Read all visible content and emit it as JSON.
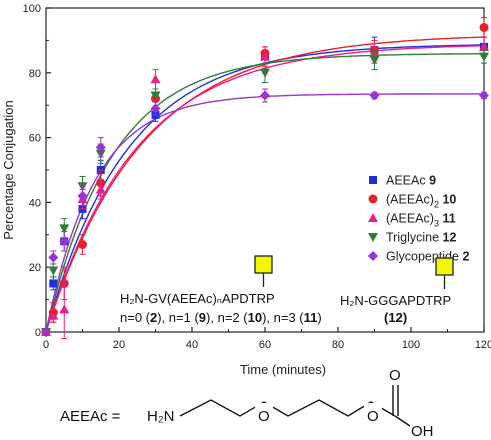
{
  "chart_data": {
    "type": "scatter",
    "xlabel": "Time (minutes)",
    "ylabel": "Percentage Conjugation",
    "xlim": [
      0,
      120
    ],
    "ylim": [
      0,
      100
    ],
    "xticks": [
      0,
      20,
      40,
      60,
      80,
      100,
      120
    ],
    "yticks": [
      0,
      20,
      40,
      60,
      80,
      100
    ],
    "grid": false,
    "legend_position": "middle-right",
    "series": [
      {
        "name": "AEEAc",
        "bold": "9",
        "marker": "square",
        "color": "#1f2fe0",
        "points": [
          [
            0,
            0
          ],
          [
            2,
            15
          ],
          [
            5,
            28
          ],
          [
            10,
            38
          ],
          [
            15,
            50
          ],
          [
            30,
            67
          ],
          [
            60,
            85
          ],
          [
            90,
            87
          ],
          [
            120,
            88
          ]
        ],
        "errors": [
          0,
          2,
          3,
          3,
          3,
          2,
          2,
          4,
          3
        ],
        "fit": {
          "max": 89,
          "k": 0.045
        }
      },
      {
        "name": "(AEEAc)",
        "sub": "2",
        "bold": "10",
        "marker": "circle",
        "color": "#e8202a",
        "points": [
          [
            0,
            0
          ],
          [
            2,
            6
          ],
          [
            5,
            15
          ],
          [
            10,
            27
          ],
          [
            15,
            46
          ],
          [
            30,
            72
          ],
          [
            60,
            86
          ],
          [
            90,
            87
          ],
          [
            120,
            94
          ]
        ],
        "errors": [
          0,
          3,
          5,
          3,
          4,
          3,
          2,
          3,
          3
        ],
        "fit": {
          "max": 92,
          "k": 0.038
        }
      },
      {
        "name": "(AEEAc)",
        "sub": "3",
        "bold": "11",
        "marker": "triangle-up",
        "color": "#ee1c8c",
        "points": [
          [
            0,
            0
          ],
          [
            2,
            5
          ],
          [
            5,
            7
          ],
          [
            10,
            41
          ],
          [
            15,
            44
          ],
          [
            30,
            78
          ],
          [
            60,
            85
          ],
          [
            90,
            86
          ],
          [
            120,
            88
          ]
        ],
        "errors": [
          0,
          2,
          9,
          3,
          3,
          3,
          3,
          3,
          3
        ],
        "fit": {
          "max": 89,
          "k": 0.041
        }
      },
      {
        "name": "Triglycine",
        "bold": "12",
        "marker": "triangle-down",
        "color": "#2e7d32",
        "points": [
          [
            0,
            0
          ],
          [
            2,
            19
          ],
          [
            5,
            32
          ],
          [
            10,
            45
          ],
          [
            15,
            55
          ],
          [
            30,
            73
          ],
          [
            60,
            80
          ],
          [
            90,
            84
          ],
          [
            120,
            85
          ]
        ],
        "errors": [
          0,
          2,
          3,
          3,
          3,
          2,
          3,
          3,
          2
        ],
        "fit": {
          "max": 86,
          "k": 0.055
        }
      },
      {
        "name": "Glycopeptide",
        "bold": "2",
        "marker": "diamond",
        "color": "#9b32d6",
        "points": [
          [
            0,
            0
          ],
          [
            2,
            23
          ],
          [
            5,
            28
          ],
          [
            10,
            42
          ],
          [
            15,
            57
          ],
          [
            30,
            69
          ],
          [
            60,
            73
          ],
          [
            90,
            73
          ],
          [
            120,
            73
          ]
        ],
        "errors": [
          0,
          2,
          3,
          3,
          3,
          2,
          2,
          1,
          1
        ],
        "fit": {
          "max": 73.5,
          "k": 0.075
        }
      }
    ],
    "annotations": {
      "peptide1_formula": "H₂N-GV(AEEAc)ₙAPDTRP",
      "peptide1_n_values": [
        {
          "text": "n=0 (",
          "bold": "2",
          "close": "), "
        },
        {
          "text": "n=1 (",
          "bold": "9",
          "close": "), "
        },
        {
          "text": "n=2 (",
          "bold": "10",
          "close": "), "
        },
        {
          "text": "n=3 (",
          "bold": "11",
          "close": ")"
        }
      ],
      "peptide2_formula": "H₂N-GGGAPDTRP",
      "peptide2_number": "12"
    },
    "structure": {
      "label": "AEEAc =",
      "amine": "H₂N",
      "oxygen": "O",
      "carbonyl_oxygen": "O",
      "hydroxyl": "OH"
    }
  }
}
